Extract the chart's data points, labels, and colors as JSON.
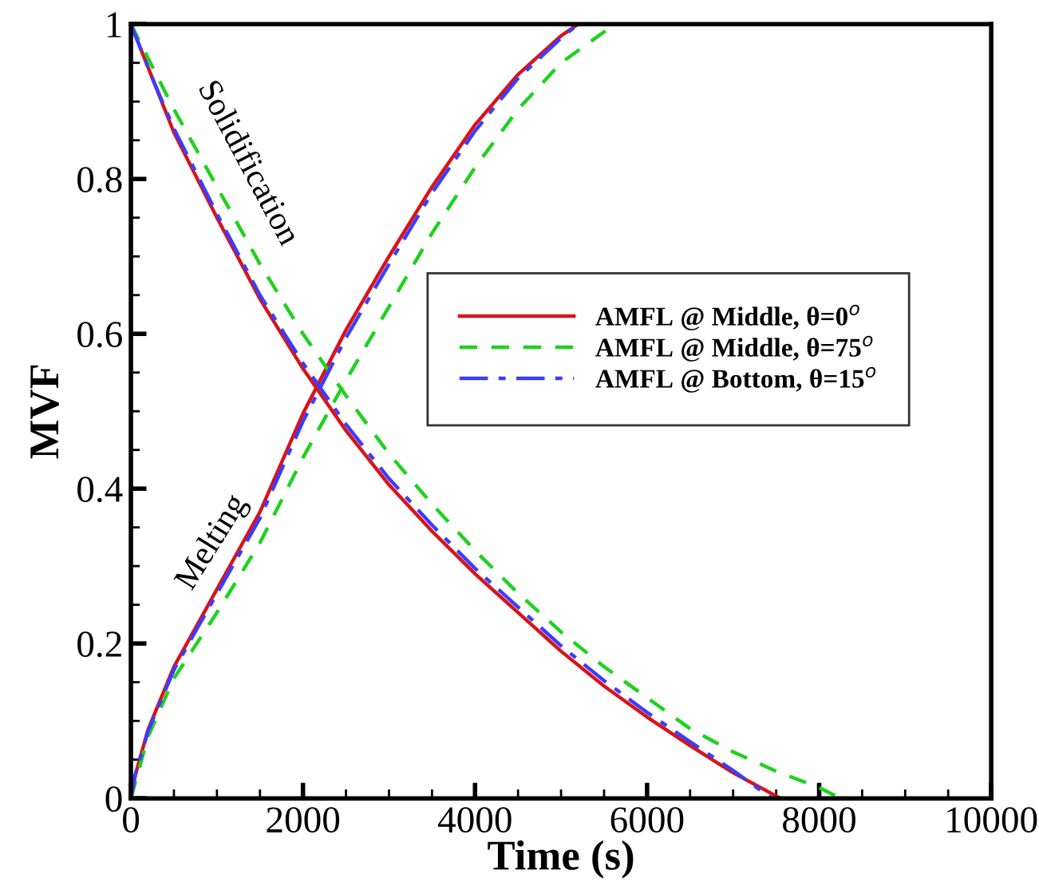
{
  "chart_data": {
    "type": "line",
    "xlabel": "Time (s)",
    "ylabel": "MVF",
    "xlim": [
      0,
      10000
    ],
    "xticks": [
      0,
      2000,
      4000,
      6000,
      8000,
      10000
    ],
    "ylim": [
      0,
      1
    ],
    "yticks": [
      0,
      0.2,
      0.4,
      0.6,
      0.8,
      1
    ],
    "grid": false,
    "legend": "right",
    "series": [
      {
        "name": "AMFL @ Middle, θ=0$^{o}$",
        "color": "#d7141a",
        "line_style": "solid",
        "x": [
          0,
          250,
          500,
          1000,
          1500,
          2000,
          2500,
          3000,
          3500,
          4000,
          4500,
          5000,
          5500,
          6000,
          6500,
          7000,
          7550
        ],
        "values": [
          1,
          0.93,
          0.86,
          0.75,
          0.645,
          0.555,
          0.475,
          0.405,
          0.345,
          0.29,
          0.24,
          0.19,
          0.145,
          0.105,
          0.068,
          0.033,
          0
        ]
      },
      {
        "color": "#d7141a",
        "line_style": "solid",
        "x": [
          0,
          50,
          200,
          500,
          900,
          1500,
          2000,
          2500,
          3000,
          3500,
          4000,
          4500,
          5000,
          5200
        ],
        "values": [
          0,
          0.03,
          0.089,
          0.17,
          0.25,
          0.37,
          0.497,
          0.605,
          0.7,
          0.79,
          0.87,
          0.935,
          0.985,
          1
        ]
      },
      {
        "name": "AMFL @ Middle, θ=75$^{o}$",
        "color": "#1ed21e",
        "line_style": "dashed",
        "x": [
          0,
          500,
          1000,
          1500,
          2000,
          2500,
          3000,
          3500,
          4000,
          4500,
          5000,
          5500,
          6000,
          6500,
          7000,
          7500,
          8000,
          8250
        ],
        "values": [
          1,
          0.89,
          0.79,
          0.69,
          0.6,
          0.52,
          0.445,
          0.38,
          0.32,
          0.265,
          0.215,
          0.17,
          0.13,
          0.09,
          0.06,
          0.035,
          0.014,
          0
        ]
      },
      {
        "color": "#1ed21e",
        "line_style": "dashed",
        "x": [
          0,
          200,
          500,
          1000,
          1500,
          2000,
          2500,
          3000,
          3500,
          4000,
          4500,
          5000,
          5500,
          5650
        ],
        "values": [
          0,
          0.08,
          0.155,
          0.24,
          0.33,
          0.44,
          0.54,
          0.635,
          0.73,
          0.815,
          0.89,
          0.95,
          0.99,
          1
        ]
      },
      {
        "name": "AMFL @ Bottom, θ=15$^{o}$",
        "color": "#3c3cff",
        "line_style": "dashdot",
        "x": [
          0,
          250,
          500,
          1000,
          1500,
          2000,
          2500,
          3000,
          3500,
          4000,
          4500,
          5000,
          5500,
          6000,
          6500,
          7000,
          7450
        ],
        "values": [
          1,
          0.93,
          0.865,
          0.755,
          0.65,
          0.562,
          0.483,
          0.413,
          0.353,
          0.297,
          0.247,
          0.197,
          0.152,
          0.111,
          0.073,
          0.036,
          0
        ]
      },
      {
        "color": "#3c3cff",
        "line_style": "dashdot",
        "x": [
          0,
          50,
          200,
          500,
          900,
          1500,
          2000,
          2500,
          3000,
          3500,
          4000,
          4500,
          5000,
          5200
        ],
        "values": [
          0,
          0.03,
          0.087,
          0.166,
          0.245,
          0.362,
          0.487,
          0.595,
          0.69,
          0.782,
          0.862,
          0.93,
          0.982,
          1
        ]
      }
    ],
    "annotations": [
      "Solidification",
      "Melting"
    ]
  }
}
